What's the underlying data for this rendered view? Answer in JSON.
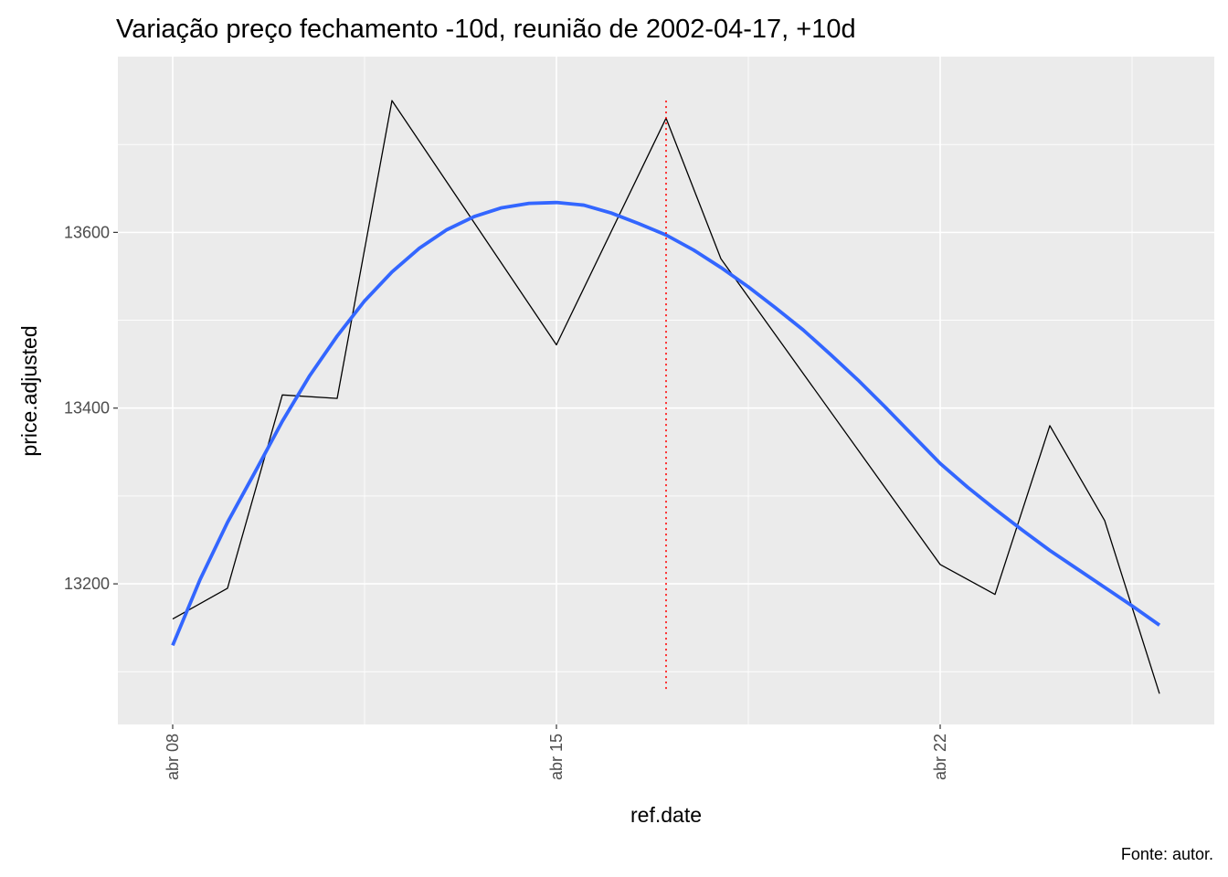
{
  "chart_data": {
    "type": "line",
    "title": "Variação preço fechamento -10d, reunião de 2002-04-17, +10d",
    "xlabel": "ref.date",
    "ylabel": "price.adjusted",
    "caption": "Fonte: autor.",
    "x_ticks": [
      {
        "date": "2002-04-08",
        "label": "abr 08"
      },
      {
        "date": "2002-04-15",
        "label": "abr 15"
      },
      {
        "date": "2002-04-22",
        "label": "abr 22"
      }
    ],
    "y_ticks": [
      13200,
      13400,
      13600
    ],
    "xlim": [
      "2002-04-07",
      "2002-04-27"
    ],
    "ylim": [
      13040,
      13800
    ],
    "grid": true,
    "series": [
      {
        "type": "line",
        "color": "#000000",
        "x": [
          "2002-04-08",
          "2002-04-09",
          "2002-04-10",
          "2002-04-11",
          "2002-04-12",
          "2002-04-15",
          "2002-04-17",
          "2002-04-18",
          "2002-04-22",
          "2002-04-23",
          "2002-04-24",
          "2002-04-25",
          "2002-04-26"
        ],
        "y": [
          13160,
          13195,
          13415,
          13411,
          13750,
          13472,
          13730,
          13570,
          13222,
          13188,
          13380,
          13272,
          13075
        ]
      },
      {
        "type": "smooth",
        "color": "#3366FF",
        "x": [
          "2002-04-08",
          "2002-04-08 12:00",
          "2002-04-09",
          "2002-04-09 12:00",
          "2002-04-10",
          "2002-04-10 12:00",
          "2002-04-11",
          "2002-04-11 12:00",
          "2002-04-12",
          "2002-04-12 12:00",
          "2002-04-13",
          "2002-04-13 12:00",
          "2002-04-14",
          "2002-04-14 12:00",
          "2002-04-15",
          "2002-04-15 12:00",
          "2002-04-16",
          "2002-04-16 12:00",
          "2002-04-17",
          "2002-04-17 12:00",
          "2002-04-18",
          "2002-04-18 12:00",
          "2002-04-19",
          "2002-04-19 12:00",
          "2002-04-20",
          "2002-04-20 12:00",
          "2002-04-21",
          "2002-04-21 12:00",
          "2002-04-22",
          "2002-04-22 12:00",
          "2002-04-23",
          "2002-04-23 12:00",
          "2002-04-24",
          "2002-04-24 12:00",
          "2002-04-25",
          "2002-04-25 12:00",
          "2002-04-26"
        ],
        "y": [
          13130,
          13205,
          13270,
          13327,
          13385,
          13437,
          13482,
          13522,
          13555,
          13582,
          13603,
          13618,
          13628,
          13633,
          13634,
          13631,
          13622,
          13610,
          13597,
          13580,
          13560,
          13538,
          13514,
          13489,
          13461,
          13432,
          13401,
          13369,
          13337,
          13310,
          13285,
          13261,
          13238,
          13217,
          13196,
          13175,
          13153
        ]
      }
    ],
    "vline": {
      "x": "2002-04-17",
      "y_from": 13080,
      "y_to": 13750,
      "color": "#FF0000",
      "style": "dotted"
    }
  }
}
